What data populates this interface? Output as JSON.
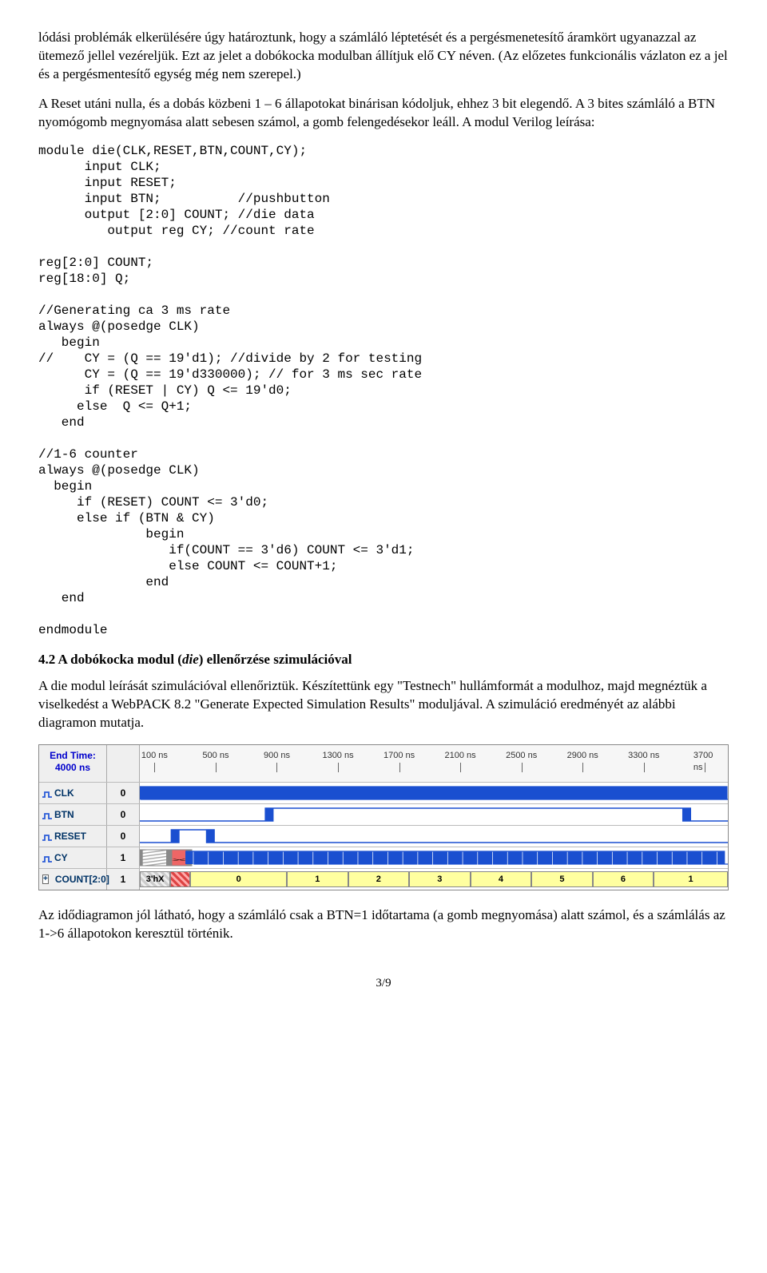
{
  "para1": "lódási problémák elkerülésére úgy határoztunk, hogy a számláló léptetését és a pergésmenetesítő áramkört ugyanazzal az ütemező jellel vezéreljük. Ezt az jelet a dobókocka modulban állítjuk elő CY néven. (Az előzetes funkcionális vázlaton ez a jel és a pergésmentesítő egység még nem szerepel.)",
  "para2": "A Reset utáni nulla, és a dobás közbeni 1 – 6 állapotokat binárisan kódoljuk, ehhez 3 bit elegendő. A 3 bites számláló a BTN nyomógomb megnyomása alatt sebesen számol, a gomb felengedésekor leáll. A modul Verilog leírása:",
  "code": "module die(CLK,RESET,BTN,COUNT,CY);\n      input CLK;\n      input RESET;\n      input BTN;          //pushbutton\n      output [2:0] COUNT; //die data\n         output reg CY; //count rate\n\nreg[2:0] COUNT;\nreg[18:0] Q;\n\n//Generating ca 3 ms rate\nalways @(posedge CLK)\n   begin\n//    CY = (Q == 19'd1); //divide by 2 for testing\n      CY = (Q == 19'd330000); // for 3 ms sec rate\n      if (RESET | CY) Q <= 19'd0;\n     else  Q <= Q+1;\n   end\n\n//1-6 counter\nalways @(posedge CLK)\n  begin\n     if (RESET) COUNT <= 3'd0;\n     else if (BTN & CY)\n              begin\n                 if(COUNT == 3'd6) COUNT <= 3'd1;\n                 else COUNT <= COUNT+1;\n              end\n   end\n\nendmodule",
  "heading42_prefix": "4.2 A dobókocka modul (",
  "heading42_italic": "die",
  "heading42_suffix": ") ellenőrzése szimulációval",
  "para3": "A die modul leírását szimulációval ellenőriztük. Készítettünk egy \"Testnech\" hullámformát a modulhoz, majd megnéztük a viselkedést a WebPACK 8.2 \"Generate Expected Simulation Results\" moduljával. A szimuláció eredményét az alábbi diagramon mutatja.",
  "para4": "Az idődiagramon jól látható, hogy a számláló csak a BTN=1 időtartama (a gomb megnyomása) alatt számol, és a számlálás az 1->6 állapotokon keresztül történik.",
  "page_number": "3/9",
  "timing": {
    "end_time_label": "End Time:",
    "end_time_value": "4000 ns",
    "tick_labels": [
      "100 ns",
      "500 ns",
      "900 ns",
      "1300 ns",
      "1700 ns",
      "2100 ns",
      "2500 ns",
      "2900 ns",
      "3300 ns",
      "3700 ns"
    ],
    "tick_positions_pct": [
      2.5,
      12.9,
      23.3,
      33.7,
      44.1,
      54.5,
      64.9,
      75.3,
      85.7,
      96.1
    ],
    "signals": [
      {
        "name": "CLK",
        "icon_color": "#2a5bd7",
        "val": "0",
        "type": "clock"
      },
      {
        "name": "BTN",
        "icon_color": "#2a5bd7",
        "val": "0",
        "type": "btn"
      },
      {
        "name": "RESET",
        "icon_color": "#2a5bd7",
        "val": "0",
        "type": "reset"
      },
      {
        "name": "CY",
        "icon_color": "#2a5bd7",
        "val": "1",
        "type": "cy"
      },
      {
        "name": "COUNT[2:0]",
        "icon_color": "#2a5bd7",
        "val": "1",
        "type": "bus",
        "expandable": true
      }
    ],
    "bus_segments": [
      {
        "label": "3'hX",
        "left_pct": 0,
        "width_pct": 5.2,
        "style": "hatch"
      },
      {
        "label": "",
        "left_pct": 5.2,
        "width_pct": 3.4,
        "style": "x"
      },
      {
        "label": "0",
        "left_pct": 8.6,
        "width_pct": 16.4,
        "style": "normal"
      },
      {
        "label": "1",
        "left_pct": 25.0,
        "width_pct": 10.4,
        "style": "normal"
      },
      {
        "label": "2",
        "left_pct": 35.4,
        "width_pct": 10.4,
        "style": "normal"
      },
      {
        "label": "3",
        "left_pct": 45.8,
        "width_pct": 10.4,
        "style": "normal"
      },
      {
        "label": "4",
        "left_pct": 56.2,
        "width_pct": 10.4,
        "style": "normal"
      },
      {
        "label": "5",
        "left_pct": 66.6,
        "width_pct": 10.4,
        "style": "normal"
      },
      {
        "label": "6",
        "left_pct": 77.0,
        "width_pct": 10.4,
        "style": "normal"
      },
      {
        "label": "1",
        "left_pct": 87.4,
        "width_pct": 12.6,
        "style": "normal"
      }
    ]
  }
}
